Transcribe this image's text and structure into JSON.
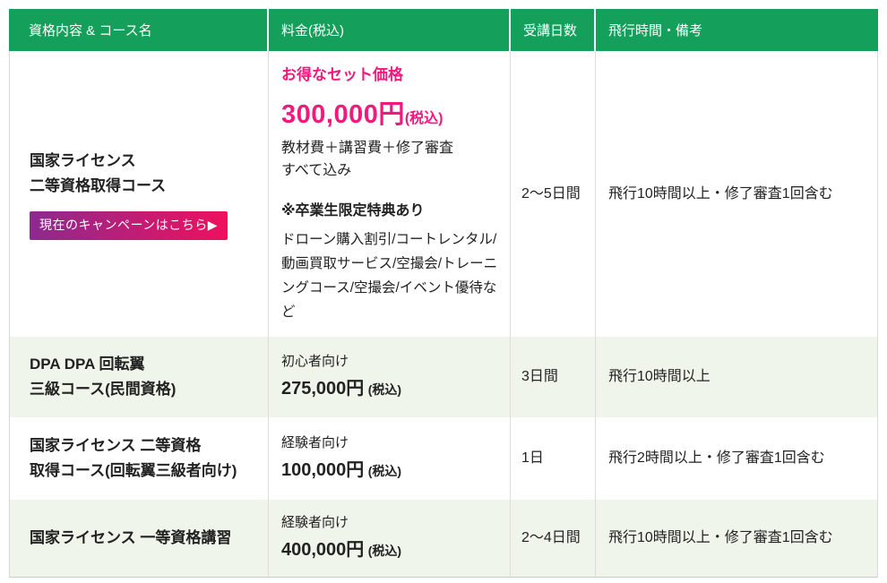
{
  "colors": {
    "header_green": "#14a05a",
    "row_alt_green": "#f0f5eb",
    "accent_pink": "#f3187d",
    "button_gradient_start": "#8b2b8e",
    "button_gradient_end": "#ef105e"
  },
  "table": {
    "headers": [
      "資格内容 & コース名",
      "料金(税込)",
      "受講日数",
      "飛行時間・備考"
    ],
    "rows": [
      {
        "course_lines": [
          "国家ライセンス",
          "二等資格取得コース"
        ],
        "campaign_button": "現在のキャンペーンはこちら▶",
        "price": {
          "set_label": "お得なセット価格",
          "amount": "300,000円",
          "tax_note": "(税込)",
          "includes": [
            "教材費＋講習費＋修了審査",
            "すべて込み"
          ],
          "bonus_title": "※卒業生限定特典あり",
          "bonus_detail": "ドローン購入割引/コートレンタル/ 動画買取サービス/空撮会/トレーニングコース/空撮会/イベント優待など"
        },
        "days": "2〜5日間",
        "remarks": "飛行10時間以上・修了審査1回含む"
      },
      {
        "course_lines": [
          "DPA DPA 回転翼",
          "三級コース(民間資格)"
        ],
        "price": {
          "level": "初心者向け",
          "amount": "275,000円",
          "tax_note": "(税込)"
        },
        "days": "3日間",
        "remarks": "飛行10時間以上"
      },
      {
        "course_lines": [
          "国家ライセンス 二等資格",
          "取得コース(回転翼三級者向け)"
        ],
        "price": {
          "level": "経験者向け",
          "amount": "100,000円",
          "tax_note": "(税込)"
        },
        "days": "1日",
        "remarks": "飛行2時間以上・修了審査1回含む"
      },
      {
        "course_lines": [
          "国家ライセンス 一等資格講習"
        ],
        "price": {
          "level": "経験者向け",
          "amount": "400,000円",
          "tax_note": "(税込)"
        },
        "days": "2〜4日間",
        "remarks": "飛行10時間以上・修了審査1回含む"
      }
    ]
  }
}
